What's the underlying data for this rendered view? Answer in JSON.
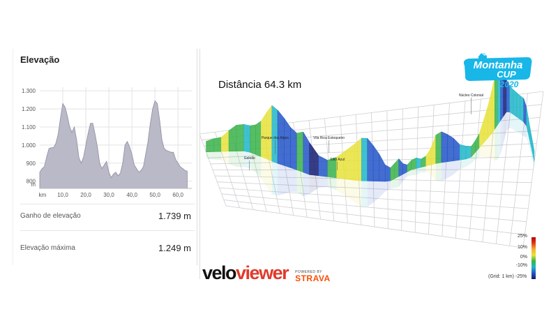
{
  "card": {
    "title": "Elevação",
    "gain_label": "Ganho de elevação",
    "gain_value": "1.739 m",
    "max_label": "Elevação máxima",
    "max_value": "1.249 m"
  },
  "view3d": {
    "distance_label": "Distância 64.3 km",
    "town_labels": [
      "Núcleo Colonial",
      "Parque dos Alpes",
      "Vila Rica Estoqueiro",
      "Galeão",
      "Sítio Azul"
    ],
    "legend_ticks": [
      "25%",
      "10%",
      "0%",
      "-10%",
      "-25%"
    ],
    "grid_note": "(Grid: 1 km)"
  },
  "branding": {
    "montanha_line1": "Montanha",
    "montanha_line2": "CUP",
    "montanha_year": "2020",
    "vv_velo": "velo",
    "vv_viewer": "viewer",
    "powered_by": "POWERED BY",
    "strava": "STRAVA"
  },
  "colors": {
    "profile_fill": "#b9b9c7",
    "profile_stroke": "#8c8ca0",
    "accent_cyan": "#18b7e8",
    "strava_orange": "#fc4c02"
  },
  "chart_data": {
    "type": "area",
    "title": "Elevação",
    "xlabel": "km",
    "ylabel": "m",
    "x_ticks": [
      "10,0",
      "20,0",
      "30,0",
      "40,0",
      "50,0",
      "60,0"
    ],
    "y_ticks": [
      "800",
      "900",
      "1.000",
      "1.100",
      "1.200",
      "1.300"
    ],
    "xlim": [
      0,
      66
    ],
    "ylim": [
      760,
      1320
    ],
    "grid": true,
    "x": [
      0,
      1,
      2,
      3,
      4,
      5,
      6,
      7,
      8,
      9,
      10,
      11,
      12,
      13,
      14,
      15,
      16,
      17,
      18,
      19,
      20,
      21,
      22,
      23,
      24,
      25,
      26,
      27,
      28,
      29,
      30,
      31,
      32,
      33,
      34,
      35,
      36,
      37,
      38,
      39,
      40,
      41,
      42,
      43,
      44,
      45,
      46,
      47,
      48,
      49,
      50,
      51,
      52,
      53,
      54,
      55,
      56,
      57,
      58,
      59,
      60,
      61,
      62,
      63,
      64
    ],
    "y": [
      850,
      870,
      880,
      935,
      980,
      985,
      985,
      1010,
      1060,
      1150,
      1230,
      1210,
      1160,
      1100,
      1070,
      1100,
      1030,
      930,
      900,
      935,
      1000,
      1065,
      1120,
      1120,
      1060,
      990,
      900,
      870,
      890,
      910,
      850,
      820,
      840,
      850,
      830,
      845,
      900,
      1000,
      1020,
      990,
      950,
      890,
      870,
      850,
      860,
      880,
      950,
      1020,
      1120,
      1200,
      1245,
      1230,
      1140,
      1030,
      980,
      970,
      965,
      960,
      960,
      920,
      900,
      880,
      870,
      860,
      855
    ]
  }
}
